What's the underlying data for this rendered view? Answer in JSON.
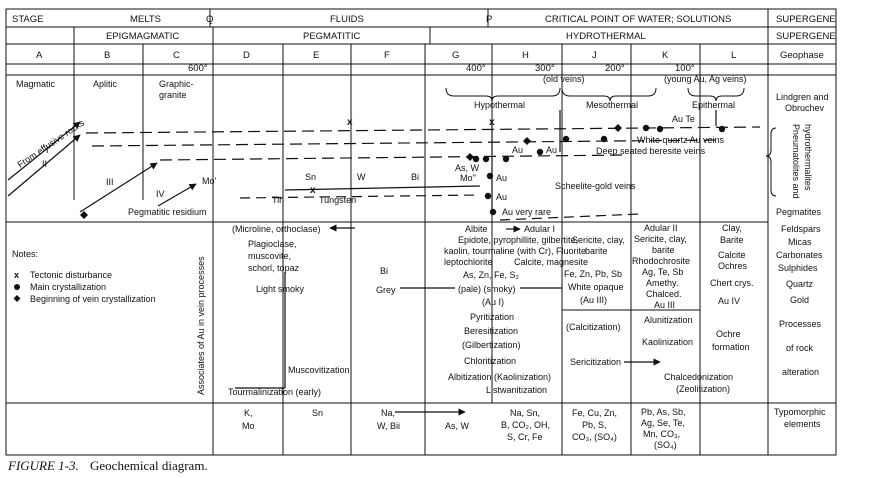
{
  "header": {
    "row1": {
      "stage": "STAGE",
      "melts": "MELTS",
      "q": "Q",
      "fluids": "FLUIDS",
      "p": "P",
      "critical": "CRITICAL POINT OF WATER; SOLUTIONS",
      "supergene": "SUPERGENE"
    },
    "row2": {
      "epigmagmatic": "EPIGMAGMATIC",
      "pegmatitic": "PEGMATITIC",
      "hydrothermal": "HYDROTHERMAL",
      "supergene": "SUPERGENE"
    },
    "row3": {
      "A": "A",
      "B": "B",
      "C": "C",
      "t600": "600°",
      "D": "D",
      "E": "E",
      "F": "F",
      "G": "G",
      "t400": "400°",
      "H": "H",
      "t300": "300°",
      "J": "J",
      "t200": "200°",
      "K": "K",
      "t100": "100°",
      "L": "L",
      "geophase": "Geophase"
    }
  },
  "stages": {
    "magmatic": "Magmatic",
    "aplitic": "Aplitic",
    "graphic_1": "Graphic-",
    "graphic_2": "granite",
    "old_veins": "(old veins)",
    "young_veins": "(young Au, Ag veins)",
    "hypothermal": "Hypothermal",
    "mesothermal": "Mesothermal",
    "epithermal": "Epithermal",
    "lindgren_1": "Lindgren and",
    "lindgren_2": "Obruchev",
    "pneumato_1": "Pneumatolites and",
    "pneumato_2": "hydrothermalites"
  },
  "flow": {
    "effusive": "From effusive rocks",
    "roman_1": "I",
    "roman_2": "II",
    "roman_3": "III",
    "roman_4": "IV",
    "mo_prime": "Mo'",
    "residium": "Pegmatitic residium",
    "sn": "Sn",
    "tin": "Tin",
    "w": "W",
    "tungsten": "Tungsten",
    "bi": "Bi",
    "as_w": "As, W",
    "mo_dbl": "Mo''",
    "au": "Au",
    "au_te": "Au Te",
    "white_quartz": "White quartz Au veins",
    "beresite": "Deep seated beresite veins",
    "scheelite": "Scheelite-gold veins",
    "au_very_rare": "Au very rare"
  },
  "notes": {
    "title": "Notes:",
    "tectonic": "Tectonic disturbance",
    "main": "Main crystallization",
    "beginning": "Beginning of vein crystallization"
  },
  "associates": "Associates of Au in vein processes",
  "minerals": {
    "microline": "(Microline, orthoclase)",
    "albite": "Albite",
    "adular1": "Adular I",
    "epidote": "Epidote, pyrophillite, gilbertite,",
    "sericite": "Sericite, clay,",
    "kaolin": "kaolin, tourmaline (with Cr), Fluorite",
    "barite": "barite",
    "leptochlorite": "leptochlorite",
    "calcite_mag": "Calcite, magnesite",
    "plagioclase": "Plagioclase,",
    "muscovite": "muscovite,",
    "schorl": "schorl, topaz",
    "light_smoky": "Light smoky",
    "bi": "Bi",
    "grey": "Grey",
    "as_zn": "As, Zn, Fe, S₂",
    "pale": "(pale) (smoky)",
    "au1": "(Au I)",
    "fe_zn": "Fe, Zn, Pb, Sb",
    "white_opaque": "White opaque",
    "au3": "(Au III)",
    "adular2": "Adular II",
    "rhodochrosite": "Rhodochrosite",
    "ag_te_sb": "Ag, Te, Sb",
    "amethy": "Amethy.",
    "chalced": "Chalced.",
    "au3b": "Au III",
    "clay": "Clay,",
    "barite_l": "Barite",
    "calcite": "Calcite",
    "ochres": "Ochres",
    "chert": "Chert crys.",
    "au4": "Au IV"
  },
  "processes": {
    "pyritization": "Pyritization",
    "beresitization": "Beresitization",
    "gilbertization": "(Gilbertization)",
    "chloritization": "Chloritization",
    "albitization": "Albitization (Kaolinization)",
    "listwanitization": "Listwanitization",
    "calcitization": "(Calcitization)",
    "sericitization": "Sericitization",
    "alunitization": "Alunitization",
    "kaolinization": "Kaolinization",
    "ochre_1": "Ochre",
    "ochre_2": "formation",
    "chalcedonization": "Chalcedonization",
    "zeolitization": "(Zeolitization)",
    "muscovitization": "Muscovitization",
    "tourmalinization": "Tourmalinization (early)"
  },
  "supergene_col": {
    "pegmatites": "Pegmatites",
    "feldspars": "Feldspars",
    "micas": "Micas",
    "carbonates": "Carbonates",
    "sulphides": "Sulphides",
    "quartz": "Quartz",
    "gold": "Gold",
    "proc_1": "Processes",
    "proc_2": "of rock",
    "proc_3": "alteration",
    "typo_1": "Typomorphic",
    "typo_2": "elements"
  },
  "typomorphic": {
    "d1": "K,",
    "d2": "Mo",
    "e1": "Sn",
    "f1": "Na,",
    "f2": "W, Bii",
    "g1": "As, W",
    "h1": "Na, Sn,",
    "h2": "B, CO₂, OH,",
    "h3": "S, Cr, Fe",
    "j1": "Fe, Cu, Zn,",
    "j2": "Pb, S,",
    "j3": "CO₃, (SO₄)",
    "k1": "Pb, As, Sb,",
    "k2": "Ag, Se, Te,",
    "k3": "Mn, CO₃,",
    "k4": "(SO₄)"
  },
  "caption": {
    "figure": "FIGURE 1-3.",
    "title": "Geochemical diagram."
  }
}
